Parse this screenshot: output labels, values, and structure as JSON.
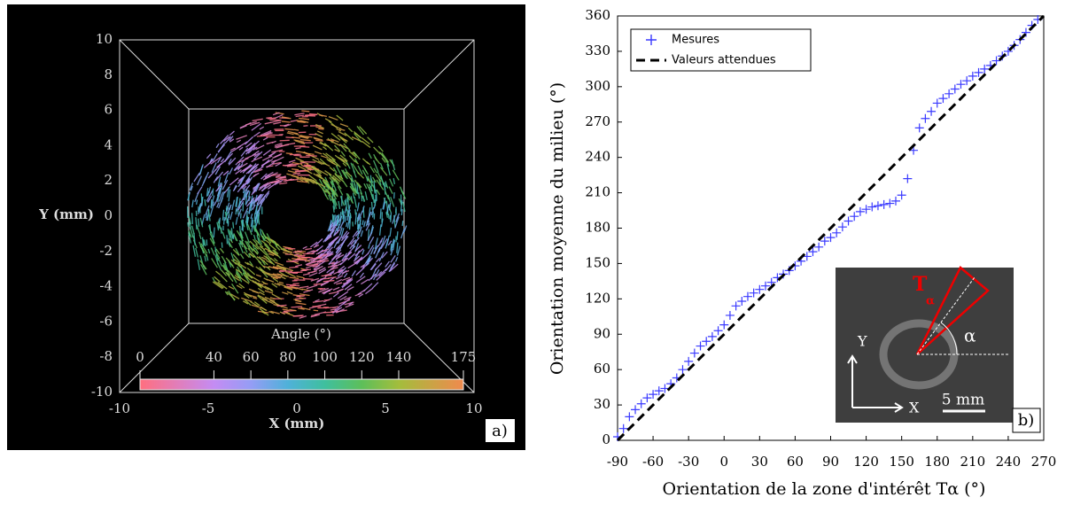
{
  "chart_data": [
    {
      "type": "vector-field",
      "xlabel": "X (mm)",
      "ylabel": "Y (mm)",
      "xlim": [
        -10,
        10
      ],
      "xticks": [
        -10,
        -5,
        0,
        5,
        10
      ],
      "ylim": [
        -10,
        10
      ],
      "yticks": [
        -10,
        -8,
        -6,
        -4,
        -2,
        0,
        2,
        4,
        6,
        8,
        10
      ],
      "colorbar": {
        "label": "Angle (°)",
        "lim": [
          0,
          175
        ],
        "ticks": [
          0,
          40,
          60,
          80,
          100,
          120,
          140,
          175
        ]
      },
      "panel_label": "a)"
    },
    {
      "type": "scatter",
      "xlabel": "Orientation de la zone d'intérêt Tα (°)",
      "ylabel": "Orientation moyenne du milieu (°)",
      "xlim": [
        -90,
        270
      ],
      "xticks": [
        -90,
        -60,
        -30,
        0,
        30,
        60,
        90,
        120,
        150,
        180,
        210,
        240,
        270
      ],
      "ylim": [
        0,
        360
      ],
      "yticks": [
        0,
        30,
        60,
        90,
        120,
        150,
        180,
        210,
        240,
        270,
        300,
        330,
        360
      ],
      "legend": "upper left",
      "panel_label": "b)",
      "inset": {
        "zone_label": "T",
        "zone_sub": "α",
        "angle_label": "α",
        "y_axis": "Y",
        "x_axis": "X",
        "scale": "5 mm"
      },
      "series": [
        {
          "name": "Mesures",
          "color": "#3a3aff",
          "marker": "plus",
          "x": [
            -90,
            -85,
            -80,
            -75,
            -70,
            -65,
            -60,
            -55,
            -50,
            -45,
            -40,
            -35,
            -30,
            -25,
            -20,
            -15,
            -10,
            -5,
            0,
            5,
            10,
            15,
            20,
            25,
            30,
            35,
            40,
            45,
            50,
            55,
            60,
            65,
            70,
            75,
            80,
            85,
            90,
            95,
            100,
            105,
            110,
            115,
            120,
            125,
            130,
            135,
            140,
            145,
            150,
            155,
            160,
            165,
            170,
            175,
            180,
            185,
            190,
            195,
            200,
            205,
            210,
            215,
            220,
            225,
            230,
            235,
            240,
            245,
            250,
            255,
            260,
            265
          ],
          "values": [
            3,
            10,
            20,
            26,
            31,
            36,
            39,
            42,
            44,
            48,
            53,
            60,
            67,
            74,
            80,
            84,
            88,
            93,
            98,
            106,
            114,
            118,
            122,
            125,
            128,
            131,
            134,
            138,
            141,
            144,
            148,
            152,
            156,
            160,
            164,
            169,
            172,
            176,
            181,
            186,
            190,
            194,
            196,
            198,
            199,
            200,
            201,
            203,
            208,
            222,
            246,
            265,
            273,
            279,
            286,
            290,
            294,
            298,
            302,
            305,
            309,
            312,
            315,
            318,
            322,
            326,
            330,
            335,
            340,
            346,
            352,
            357
          ]
        },
        {
          "name": "Valeurs attendues",
          "color": "#000000",
          "marker": "dashed-line",
          "x": [
            -90,
            270
          ],
          "values": [
            0,
            360
          ]
        }
      ]
    }
  ]
}
